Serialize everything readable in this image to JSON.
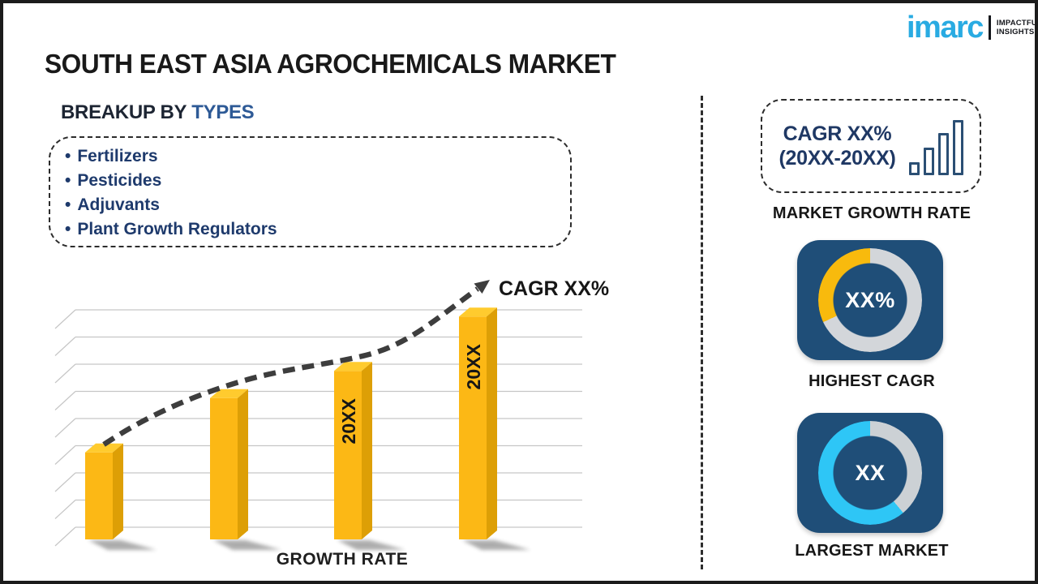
{
  "page": {
    "title": "SOUTH EAST ASIA AGROCHEMICALS MARKET"
  },
  "logo": {
    "brand": "imarc",
    "tagline_line1": "IMPACTFUL",
    "tagline_line2": "INSIGHTS",
    "brand_color": "#29abe2"
  },
  "breakup": {
    "heading_prefix": "BREAKUP BY",
    "heading_highlight": "TYPES",
    "items": [
      "Fertilizers",
      "Pesticides",
      "Adjuvants",
      "Plant Growth Regulators"
    ]
  },
  "chart_data": [
    {
      "id": "growth-rate-bars",
      "type": "bar",
      "xlabel": "GROWTH RATE",
      "categories": [
        "",
        "",
        "20XX",
        "20XX"
      ],
      "values": [
        32,
        52,
        62,
        82
      ],
      "ylim": [
        0,
        100
      ],
      "grid": true,
      "legend": false,
      "annotation": "CAGR XX%",
      "trend": "dashed-ascending-arrow",
      "bar_color": "#fcb815",
      "bar_top_color": "#ffcb2e",
      "bar_side_color": "#dd9f06"
    },
    {
      "id": "highest-cagr-donut",
      "type": "donut",
      "center_value": "XX%",
      "label": "HIGHEST CAGR",
      "filled_fraction": 0.32,
      "filled_color": "#f8ba0d",
      "track_color": "#d3d6da"
    },
    {
      "id": "largest-market-donut",
      "type": "donut",
      "center_value": "XX",
      "label": "LARGEST MARKET",
      "filled_fraction": 0.61,
      "filled_color": "#2ec6f6",
      "track_color": "#ccd1d5"
    }
  ],
  "panel": {
    "growth_box": {
      "line1": "CAGR XX%",
      "line2": "(20XX-20XX)"
    },
    "market_growth_rate_label": "MARKET GROWTH RATE",
    "card_color": "#1f4e78"
  }
}
